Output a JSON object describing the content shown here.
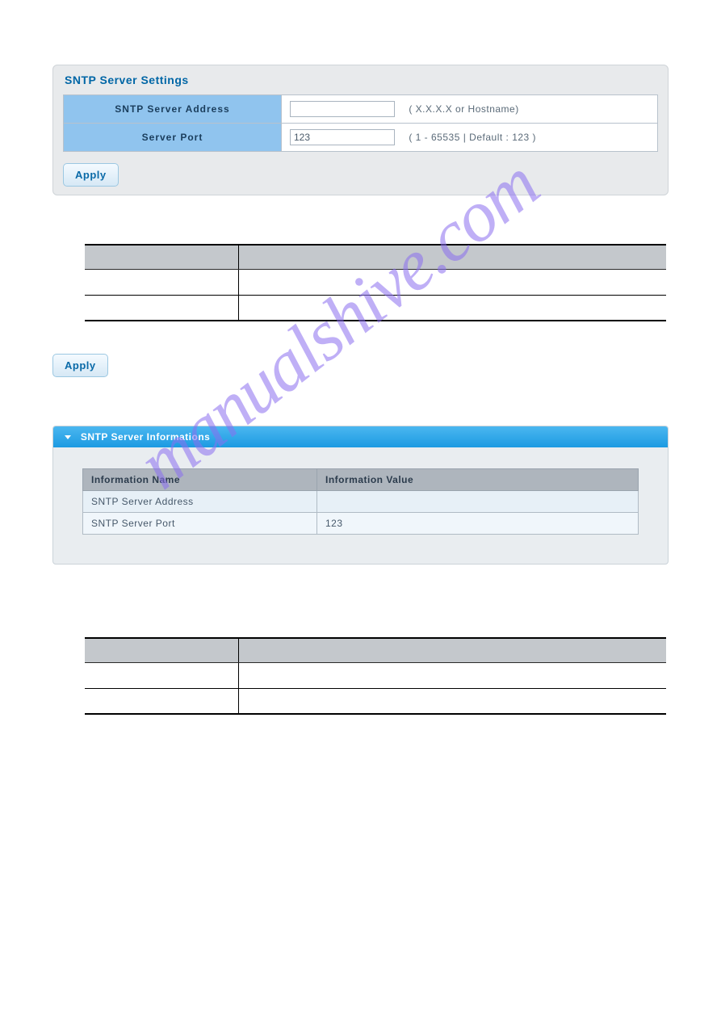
{
  "settings_panel": {
    "title": "SNTP Server Settings",
    "rows": [
      {
        "label": "SNTP Server Address",
        "value": "",
        "hint": "( X.X.X.X or Hostname)"
      },
      {
        "label": "Server Port",
        "value": "123",
        "hint": "( 1 - 65535 | Default : 123 )"
      }
    ],
    "apply_label": "Apply"
  },
  "apply_standalone": "Apply",
  "info_panel": {
    "title": "SNTP Server Informations",
    "columns": [
      "Information Name",
      "Information Value"
    ],
    "rows": [
      {
        "name": "SNTP Server Address",
        "value": ""
      },
      {
        "name": "SNTP Server Port",
        "value": "123"
      }
    ]
  },
  "watermark": "manualshive.com"
}
